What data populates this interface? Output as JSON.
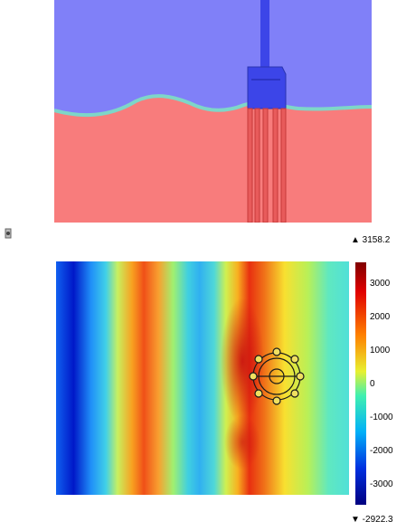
{
  "top_view": {
    "fluid_upper_color": "#8080f8",
    "fluid_lower_color": "#f87c7c",
    "structure_color": "#3c45e8",
    "legs_color": "#e85b5b"
  },
  "bottom_view": {
    "colormap": "jet"
  },
  "colorbar": {
    "max_label": "▲ 3158.2",
    "min_label": "▼ -2922.3",
    "ticks": [
      "3000",
      "2000",
      "1000",
      "0",
      "-1000",
      "-2000",
      "-3000"
    ]
  }
}
